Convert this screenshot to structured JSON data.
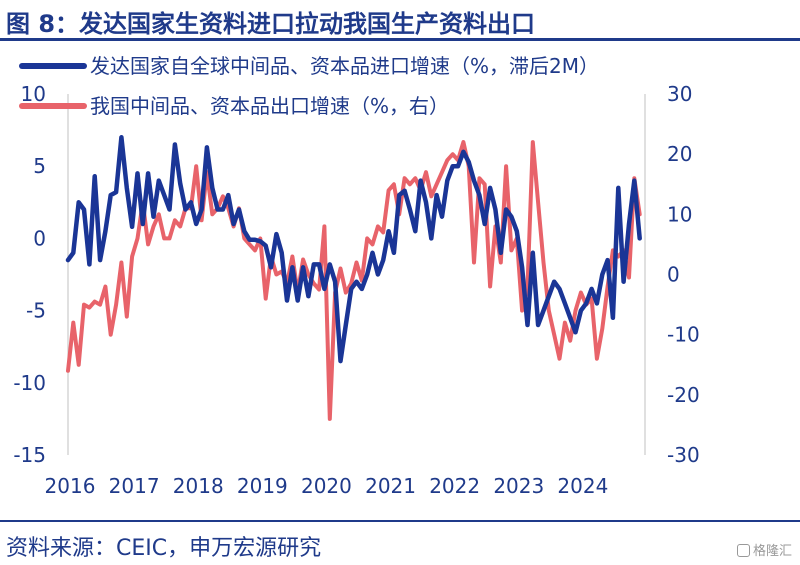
{
  "header": {
    "title": "图 8：发达国家生资料进口拉动我国生产资料出口"
  },
  "footer": {
    "source": "资料来源：CEIC，申万宏源研究",
    "watermark": "格隆汇"
  },
  "colors": {
    "title": "#1f3a8a",
    "series_left": "#1a3596",
    "series_right": "#e8636a",
    "axis": "#cccccc"
  },
  "chart_data": {
    "type": "line",
    "x_ticks": [
      "2016",
      "2017",
      "2018",
      "2019",
      "2020",
      "2021",
      "2022",
      "2023",
      "2024"
    ],
    "x_range": [
      "2016-01",
      "2024-12"
    ],
    "y_left": {
      "range": [
        -15,
        10
      ],
      "ticks": [
        "10",
        "5",
        "0",
        "-5",
        "-10",
        "-15"
      ]
    },
    "y_right": {
      "range": [
        -30,
        30
      ],
      "ticks": [
        "30",
        "20",
        "10",
        "0",
        "-10",
        "-20",
        "-30"
      ]
    },
    "legend_position": "top",
    "series": [
      {
        "name": "发达国家自全球中间品、资本品进口增速（%，滞后2M）",
        "axis": "left",
        "color": "#1a3596",
        "points": [
          [
            "2016-01",
            -1.5
          ],
          [
            "2016-02",
            -1.0
          ],
          [
            "2016-03",
            2.5
          ],
          [
            "2016-04",
            2.0
          ],
          [
            "2016-05",
            -1.8
          ],
          [
            "2016-06",
            4.3
          ],
          [
            "2016-07",
            -1.5
          ],
          [
            "2016-08",
            0.5
          ],
          [
            "2016-09",
            3.0
          ],
          [
            "2016-10",
            3.2
          ],
          [
            "2016-11",
            7.0
          ],
          [
            "2016-12",
            3.5
          ],
          [
            "2017-01",
            0.8
          ],
          [
            "2017-02",
            4.5
          ],
          [
            "2017-03",
            1.0
          ],
          [
            "2017-04",
            4.5
          ],
          [
            "2017-05",
            1.5
          ],
          [
            "2017-06",
            4.0
          ],
          [
            "2017-07",
            3.0
          ],
          [
            "2017-08",
            2.0
          ],
          [
            "2017-09",
            6.5
          ],
          [
            "2017-10",
            3.8
          ],
          [
            "2017-11",
            2.0
          ],
          [
            "2017-12",
            2.5
          ],
          [
            "2018-01",
            1.0
          ],
          [
            "2018-02",
            2.0
          ],
          [
            "2018-03",
            6.3
          ],
          [
            "2018-04",
            3.5
          ],
          [
            "2018-05",
            2.0
          ],
          [
            "2018-06",
            2.0
          ],
          [
            "2018-07",
            3.0
          ],
          [
            "2018-08",
            1.0
          ],
          [
            "2018-09",
            2.0
          ],
          [
            "2018-10",
            0.5
          ],
          [
            "2018-11",
            -0.1
          ],
          [
            "2018-12",
            -0.1
          ],
          [
            "2019-01",
            -0.2
          ],
          [
            "2019-02",
            -0.5
          ],
          [
            "2019-03",
            -2.0
          ],
          [
            "2019-04",
            0.3
          ],
          [
            "2019-05",
            -1.0
          ],
          [
            "2019-06",
            -4.3
          ],
          [
            "2019-07",
            -2.0
          ],
          [
            "2019-08",
            -4.3
          ],
          [
            "2019-09",
            -2.0
          ],
          [
            "2019-10",
            -4.0
          ],
          [
            "2019-11",
            -1.8
          ],
          [
            "2019-12",
            -1.8
          ],
          [
            "2020-01",
            -3.5
          ],
          [
            "2020-02",
            -1.8
          ],
          [
            "2020-03",
            -3.0
          ],
          [
            "2020-04",
            -8.5
          ],
          [
            "2020-05",
            -6.0
          ],
          [
            "2020-06",
            -3.5
          ],
          [
            "2020-07",
            -3.0
          ],
          [
            "2020-08",
            -3.5
          ],
          [
            "2020-09",
            -2.5
          ],
          [
            "2020-10",
            -1.0
          ],
          [
            "2020-11",
            -2.5
          ],
          [
            "2020-12",
            -1.5
          ],
          [
            "2021-01",
            0.5
          ],
          [
            "2021-02",
            -1.0
          ],
          [
            "2021-03",
            3.0
          ],
          [
            "2021-04",
            3.3
          ],
          [
            "2021-05",
            2.0
          ],
          [
            "2021-06",
            0.5
          ],
          [
            "2021-07",
            4.0
          ],
          [
            "2021-08",
            2.5
          ],
          [
            "2021-09",
            0.0
          ],
          [
            "2021-10",
            3.0
          ],
          [
            "2021-11",
            1.5
          ],
          [
            "2021-12",
            4.0
          ],
          [
            "2022-01",
            5.0
          ],
          [
            "2022-02",
            5.0
          ],
          [
            "2022-03",
            6.0
          ],
          [
            "2022-04",
            5.3
          ],
          [
            "2022-05",
            4.0
          ],
          [
            "2022-06",
            3.0
          ],
          [
            "2022-07",
            1.0
          ],
          [
            "2022-08",
            3.5
          ],
          [
            "2022-09",
            2.0
          ],
          [
            "2022-10",
            -1.0
          ],
          [
            "2022-11",
            2.0
          ],
          [
            "2022-12",
            1.5
          ],
          [
            "2023-01",
            0.5
          ],
          [
            "2023-02",
            -2.0
          ],
          [
            "2023-03",
            -6.0
          ],
          [
            "2023-04",
            -1.0
          ],
          [
            "2023-05",
            -6.0
          ],
          [
            "2023-06",
            -5.0
          ],
          [
            "2023-07",
            -4.0
          ],
          [
            "2023-08",
            -3.0
          ],
          [
            "2023-09",
            -3.5
          ],
          [
            "2023-10",
            -4.5
          ],
          [
            "2023-11",
            -5.5
          ],
          [
            "2023-12",
            -6.5
          ],
          [
            "2024-01",
            -5.0
          ],
          [
            "2024-02",
            -4.5
          ],
          [
            "2024-03",
            -3.5
          ],
          [
            "2024-04",
            -4.5
          ],
          [
            "2024-05",
            -2.5
          ],
          [
            "2024-06",
            -1.5
          ],
          [
            "2024-07",
            -5.5
          ],
          [
            "2024-08",
            3.5
          ],
          [
            "2024-09",
            -3.0
          ],
          [
            "2024-10",
            1.0
          ],
          [
            "2024-11",
            4.0
          ],
          [
            "2024-12",
            0.0
          ]
        ]
      },
      {
        "name": "我国中间品、资本品出口增速（%，右）",
        "axis": "right",
        "color": "#e8636a",
        "points": [
          [
            "2016-01",
            -16.0
          ],
          [
            "2016-02",
            -8.0
          ],
          [
            "2016-03",
            -15.0
          ],
          [
            "2016-04",
            -5.0
          ],
          [
            "2016-05",
            -5.5
          ],
          [
            "2016-06",
            -4.5
          ],
          [
            "2016-07",
            -5.0
          ],
          [
            "2016-08",
            -2.0
          ],
          [
            "2016-09",
            -10.0
          ],
          [
            "2016-10",
            -5.0
          ],
          [
            "2016-11",
            2.0
          ],
          [
            "2016-12",
            -7.0
          ],
          [
            "2017-01",
            3.0
          ],
          [
            "2017-02",
            6.0
          ],
          [
            "2017-03",
            12.0
          ],
          [
            "2017-04",
            5.0
          ],
          [
            "2017-05",
            8.0
          ],
          [
            "2017-06",
            10.0
          ],
          [
            "2017-07",
            6.0
          ],
          [
            "2017-08",
            6.0
          ],
          [
            "2017-09",
            9.0
          ],
          [
            "2017-10",
            8.0
          ],
          [
            "2017-11",
            11.0
          ],
          [
            "2017-12",
            11.0
          ],
          [
            "2018-01",
            18.0
          ],
          [
            "2018-02",
            9.0
          ],
          [
            "2018-03",
            17.0
          ],
          [
            "2018-04",
            10.0
          ],
          [
            "2018-05",
            11.0
          ],
          [
            "2018-06",
            13.0
          ],
          [
            "2018-07",
            11.0
          ],
          [
            "2018-08",
            8.0
          ],
          [
            "2018-09",
            11.0
          ],
          [
            "2018-10",
            6.0
          ],
          [
            "2018-11",
            5.0
          ],
          [
            "2018-12",
            4.0
          ],
          [
            "2019-01",
            6.0
          ],
          [
            "2019-02",
            -4.0
          ],
          [
            "2019-03",
            3.0
          ],
          [
            "2019-04",
            0.0
          ],
          [
            "2019-05",
            0.5
          ],
          [
            "2019-06",
            -1.5
          ],
          [
            "2019-07",
            3.0
          ],
          [
            "2019-08",
            -3.0
          ],
          [
            "2019-09",
            2.5
          ],
          [
            "2019-10",
            0.0
          ],
          [
            "2019-11",
            -1.5
          ],
          [
            "2019-12",
            -2.5
          ],
          [
            "2020-01",
            8.0
          ],
          [
            "2020-02",
            -24.0
          ],
          [
            "2020-03",
            -3.0
          ],
          [
            "2020-04",
            1.0
          ],
          [
            "2020-05",
            -3.0
          ],
          [
            "2020-06",
            -1.5
          ],
          [
            "2020-07",
            2.0
          ],
          [
            "2020-08",
            -1.0
          ],
          [
            "2020-09",
            6.0
          ],
          [
            "2020-10",
            5.0
          ],
          [
            "2020-11",
            8.0
          ],
          [
            "2020-12",
            7.0
          ],
          [
            "2021-01",
            14.0
          ],
          [
            "2021-02",
            15.0
          ],
          [
            "2021-03",
            10.0
          ],
          [
            "2021-04",
            16.0
          ],
          [
            "2021-05",
            15.0
          ],
          [
            "2021-06",
            16.0
          ],
          [
            "2021-07",
            14.0
          ],
          [
            "2021-08",
            17.0
          ],
          [
            "2021-09",
            13.0
          ],
          [
            "2021-10",
            15.0
          ],
          [
            "2021-11",
            17.0
          ],
          [
            "2021-12",
            19.0
          ],
          [
            "2022-01",
            20.0
          ],
          [
            "2022-02",
            19.0
          ],
          [
            "2022-03",
            22.0
          ],
          [
            "2022-04",
            18.0
          ],
          [
            "2022-05",
            2.0
          ],
          [
            "2022-06",
            16.0
          ],
          [
            "2022-07",
            15.0
          ],
          [
            "2022-08",
            -2.0
          ],
          [
            "2022-09",
            8.0
          ],
          [
            "2022-10",
            2.0
          ],
          [
            "2022-11",
            18.0
          ],
          [
            "2022-12",
            4.0
          ],
          [
            "2023-01",
            6.0
          ],
          [
            "2023-02",
            -6.0
          ],
          [
            "2023-03",
            -2.0
          ],
          [
            "2023-04",
            22.0
          ],
          [
            "2023-05",
            12.0
          ],
          [
            "2023-06",
            2.0
          ],
          [
            "2023-07",
            -6.0
          ],
          [
            "2023-08",
            -10.0
          ],
          [
            "2023-09",
            -14.0
          ],
          [
            "2023-10",
            -8.0
          ],
          [
            "2023-11",
            -11.0
          ],
          [
            "2023-12",
            -6.0
          ],
          [
            "2024-01",
            -3.0
          ],
          [
            "2024-02",
            -5.0
          ],
          [
            "2024-03",
            -4.0
          ],
          [
            "2024-04",
            -14.0
          ],
          [
            "2024-05",
            -9.0
          ],
          [
            "2024-06",
            -2.0
          ],
          [
            "2024-07",
            4.0
          ],
          [
            "2024-08",
            3.0
          ],
          [
            "2024-09",
            4.0
          ],
          [
            "2024-10",
            -0.5
          ],
          [
            "2024-11",
            16.0
          ],
          [
            "2024-12",
            10.0
          ]
        ]
      }
    ]
  }
}
